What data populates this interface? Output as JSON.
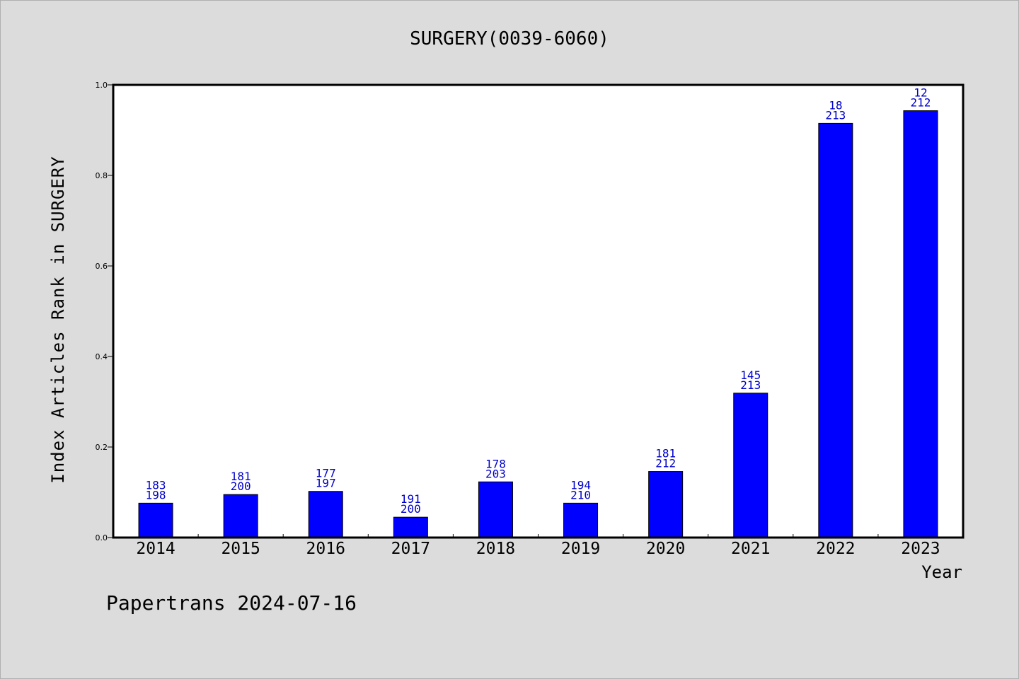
{
  "chart_data": {
    "type": "bar",
    "title": "SURGERY(0039-6060)",
    "xlabel": "Year",
    "ylabel": "Index Articles Rank in SURGERY",
    "ylim": [
      0,
      1.0
    ],
    "yticks": [
      "0.0",
      "0.2",
      "0.4",
      "0.6",
      "0.8",
      "1.0"
    ],
    "categories": [
      "2014",
      "2015",
      "2016",
      "2017",
      "2018",
      "2019",
      "2020",
      "2021",
      "2022",
      "2023"
    ],
    "values": [
      0.076,
      0.095,
      0.102,
      0.045,
      0.123,
      0.076,
      0.146,
      0.319,
      0.915,
      0.943
    ],
    "rank": [
      "183",
      "181",
      "177",
      "191",
      "178",
      "194",
      "181",
      "145",
      "18",
      "12"
    ],
    "total": [
      "198",
      "200",
      "197",
      "200",
      "203",
      "210",
      "212",
      "213",
      "213",
      "212"
    ],
    "bar_color": "#0000ff",
    "label_color": "#0000cc",
    "background": "#dcdcdc",
    "plot_background": "#ffffff",
    "grid": false
  },
  "footer": "Papertrans 2024-07-16"
}
